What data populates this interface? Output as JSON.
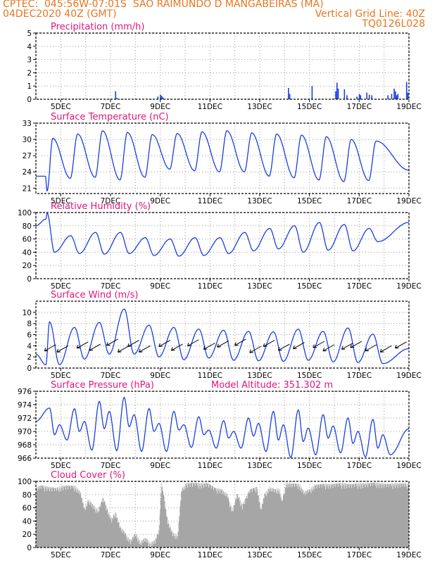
{
  "header": {
    "line1_left": "CPTEC:  045:56W-07:01S  SAO RAIMUNDO D MANGABEIRAS (MA)",
    "line2_left": "04DEC2020 40Z (GMT)",
    "line2_right": "Vertical Grid Line: 40Z",
    "line3_right": "TQ0126L028"
  },
  "colors": {
    "header": "#e8761e",
    "title": "#e0157a",
    "line": "#1a3fe0",
    "cloud": "#a6a6a6",
    "grid": "#999999"
  },
  "x_axis": {
    "start_day": 4.0,
    "end_day": 19.0,
    "tick_labels": [
      "5DEC",
      "7DEC",
      "9DEC",
      "11DEC",
      "13DEC",
      "15DEC",
      "17DEC",
      "19DEC"
    ]
  },
  "chart_data": [
    {
      "id": "precip",
      "type": "bar",
      "title": "Precipitation (mm/h)",
      "ylim": [
        0,
        5
      ],
      "yticks": [
        0,
        1,
        2,
        3,
        4,
        5
      ],
      "series": [
        {
          "points": [
            [
              5.1,
              0.05
            ],
            [
              5.5,
              0.04
            ],
            [
              6.0,
              0.03
            ],
            [
              7.2,
              0.6
            ],
            [
              7.25,
              0.1
            ],
            [
              8.9,
              0.2
            ],
            [
              9.0,
              0.35
            ],
            [
              9.05,
              0.25
            ],
            [
              9.1,
              0.15
            ],
            [
              14.15,
              0.85
            ],
            [
              14.2,
              0.4
            ],
            [
              15.1,
              1.0
            ],
            [
              16.05,
              0.6
            ],
            [
              16.1,
              1.25
            ],
            [
              16.15,
              0.8
            ],
            [
              16.4,
              0.75
            ],
            [
              16.5,
              0.3
            ],
            [
              16.9,
              0.2
            ],
            [
              17.0,
              0.4
            ],
            [
              17.05,
              0.3
            ],
            [
              17.3,
              0.5
            ],
            [
              17.4,
              0.35
            ],
            [
              17.5,
              0.3
            ],
            [
              18.15,
              0.3
            ],
            [
              18.3,
              0.4
            ],
            [
              18.4,
              0.8
            ],
            [
              18.45,
              0.6
            ],
            [
              18.5,
              0.3
            ],
            [
              18.55,
              0.4
            ],
            [
              18.9,
              1.3
            ],
            [
              18.95,
              0.5
            ]
          ]
        }
      ]
    },
    {
      "id": "temp",
      "type": "line",
      "title": "Surface Temperature (nC)",
      "ylim": [
        20,
        33
      ],
      "yticks": [
        21,
        24,
        27,
        30,
        33
      ],
      "daily": {
        "first_day": 5,
        "max": [
          30.2,
          31,
          31.6,
          31.3,
          30.9,
          31.1,
          31.4,
          31.6,
          31.2,
          31,
          30.8,
          30.5,
          30,
          29.7
        ],
        "min": [
          23.2,
          22.8,
          23,
          22.5,
          23,
          24.5,
          24.2,
          24,
          24,
          23.2,
          22.9,
          22.5,
          22.2,
          22.4
        ]
      },
      "start_value": 23.2,
      "first_min": [
        4.45,
        20.5
      ],
      "end_value": 24.3
    },
    {
      "id": "rh",
      "type": "line",
      "title": "Relative Humidity (%)",
      "ylim": [
        0,
        100
      ],
      "yticks": [
        0,
        20,
        40,
        60,
        80,
        100
      ],
      "daily": {
        "first_day": 5,
        "max": [
          90,
          65,
          70,
          70,
          62,
          60,
          62,
          62,
          70,
          76,
          80,
          85,
          82,
          76
        ],
        "min": [
          40,
          38,
          37,
          38,
          35,
          34,
          35,
          38,
          42,
          45,
          40,
          43,
          42,
          56
        ]
      },
      "start_value": 80,
      "first_max": [
        4.45,
        99
      ],
      "end_value": 85
    },
    {
      "id": "wind",
      "type": "line",
      "title": "Surface Wind (m/s)",
      "ylim": [
        0,
        12
      ],
      "yticks": [
        0,
        2,
        4,
        6,
        8,
        10
      ],
      "daily": {
        "first_day": 5,
        "max": [
          8.3,
          7.3,
          8.2,
          10.6,
          7.7,
          7.3,
          7,
          6.8,
          6.6,
          6.5,
          7,
          6.6,
          7.2,
          6.1
        ],
        "min": [
          0.6,
          1.6,
          2.5,
          2.5,
          2,
          1.5,
          1.8,
          1.4,
          1.3,
          1.2,
          1.4,
          1.1,
          1.0,
          0.8
        ]
      },
      "start_value": 2.5,
      "first_min": [
        4.4,
        0.6
      ],
      "end_value": 3.5,
      "vectors": [
        [
          4.8,
          4.2
        ],
        [
          5.3,
          4.0
        ],
        [
          6.1,
          4.7
        ],
        [
          6.6,
          4.3
        ],
        [
          7.3,
          5.2
        ],
        [
          7.75,
          4.0
        ],
        [
          8.15,
          5.0
        ],
        [
          8.6,
          4.0
        ],
        [
          9.4,
          5.0
        ],
        [
          9.9,
          4.3
        ],
        [
          10.55,
          5.1
        ],
        [
          11.2,
          4.5
        ],
        [
          11.75,
          4.9
        ],
        [
          12.45,
          5.2
        ],
        [
          13.05,
          3.9
        ],
        [
          13.6,
          5.0
        ],
        [
          14.2,
          4.3
        ],
        [
          14.8,
          4.6
        ],
        [
          15.6,
          4.8
        ],
        [
          16.0,
          4.2
        ],
        [
          16.75,
          4.5
        ],
        [
          17.1,
          4.8
        ],
        [
          17.7,
          4.2
        ],
        [
          18.3,
          4.0
        ],
        [
          18.9,
          4.7
        ]
      ]
    },
    {
      "id": "pressure",
      "type": "line",
      "title": "Surface Pressure (hPa)",
      "subtitle": "Model Altitude: 351.302 m",
      "ylim": [
        966,
        976
      ],
      "yticks": [
        966,
        968,
        970,
        972,
        974,
        976
      ],
      "semidiurnal": {
        "first_day": 5,
        "maxA": [
          973.5,
          973.4,
          974.5,
          975.1,
          973.4,
          973,
          972.2,
          971.6,
          972,
          973,
          973.2,
          972.5,
          972,
          971.8
        ],
        "minA": [
          968.7,
          967.2,
          967.1,
          967,
          967,
          967.6,
          967.5,
          967.5,
          967,
          966.1,
          966.5,
          966.8,
          966.2,
          966.5
        ],
        "maxB": [
          971,
          971.5,
          973,
          972.5,
          971.2,
          971,
          970.2,
          970,
          971.2,
          971,
          970.5,
          970.8,
          970,
          969.5
        ],
        "minB": [
          969.5,
          970,
          970.4,
          970.7,
          970,
          970.2,
          969.5,
          969,
          969.3,
          968.7,
          968.5,
          969,
          968.2,
          967.5
        ]
      },
      "start_value": 971.5,
      "end_value": 970.4
    },
    {
      "id": "cloud",
      "type": "area",
      "title": "Cloud Cover (%)",
      "ylim": [
        0,
        100
      ],
      "yticks": [
        0,
        20,
        40,
        60,
        80,
        100
      ],
      "series": [
        {
          "points": [
            [
              4.0,
              91
            ],
            [
              4.2,
              94
            ],
            [
              4.5,
              92
            ],
            [
              4.8,
              90
            ],
            [
              5.0,
              93
            ],
            [
              5.3,
              94
            ],
            [
              5.6,
              93
            ],
            [
              5.8,
              85
            ],
            [
              5.95,
              60
            ],
            [
              6.1,
              74
            ],
            [
              6.3,
              64
            ],
            [
              6.5,
              58
            ],
            [
              6.7,
              76
            ],
            [
              6.9,
              58
            ],
            [
              7.05,
              44
            ],
            [
              7.2,
              56
            ],
            [
              7.4,
              32
            ],
            [
              7.6,
              22
            ],
            [
              7.8,
              12
            ],
            [
              8.0,
              22
            ],
            [
              8.2,
              10
            ],
            [
              8.4,
              15
            ],
            [
              8.6,
              8
            ],
            [
              8.8,
              12
            ],
            [
              8.95,
              30
            ],
            [
              9.05,
              100
            ],
            [
              9.15,
              80
            ],
            [
              9.3,
              42
            ],
            [
              9.5,
              22
            ],
            [
              9.7,
              20
            ],
            [
              9.85,
              88
            ],
            [
              10.0,
              97
            ],
            [
              10.3,
              98
            ],
            [
              10.6,
              97
            ],
            [
              10.9,
              98
            ],
            [
              11.2,
              90
            ],
            [
              11.5,
              88
            ],
            [
              11.7,
              80
            ],
            [
              11.9,
              58
            ],
            [
              12.1,
              82
            ],
            [
              12.3,
              65
            ],
            [
              12.6,
              88
            ],
            [
              12.9,
              92
            ],
            [
              13.05,
              60
            ],
            [
              13.2,
              82
            ],
            [
              13.4,
              92
            ],
            [
              13.6,
              88
            ],
            [
              13.8,
              90
            ],
            [
              13.9,
              72
            ],
            [
              14.05,
              98
            ],
            [
              14.3,
              97
            ],
            [
              14.6,
              96
            ],
            [
              14.8,
              85
            ],
            [
              15.0,
              88
            ],
            [
              15.2,
              95
            ],
            [
              15.5,
              96
            ],
            [
              15.8,
              96
            ],
            [
              16.1,
              97
            ],
            [
              16.4,
              97
            ],
            [
              16.7,
              96
            ],
            [
              17.0,
              97
            ],
            [
              17.3,
              97
            ],
            [
              17.6,
              98
            ],
            [
              17.9,
              97
            ],
            [
              18.2,
              96
            ],
            [
              18.5,
              97
            ],
            [
              18.8,
              97
            ],
            [
              19.0,
              97
            ]
          ]
        }
      ]
    }
  ]
}
